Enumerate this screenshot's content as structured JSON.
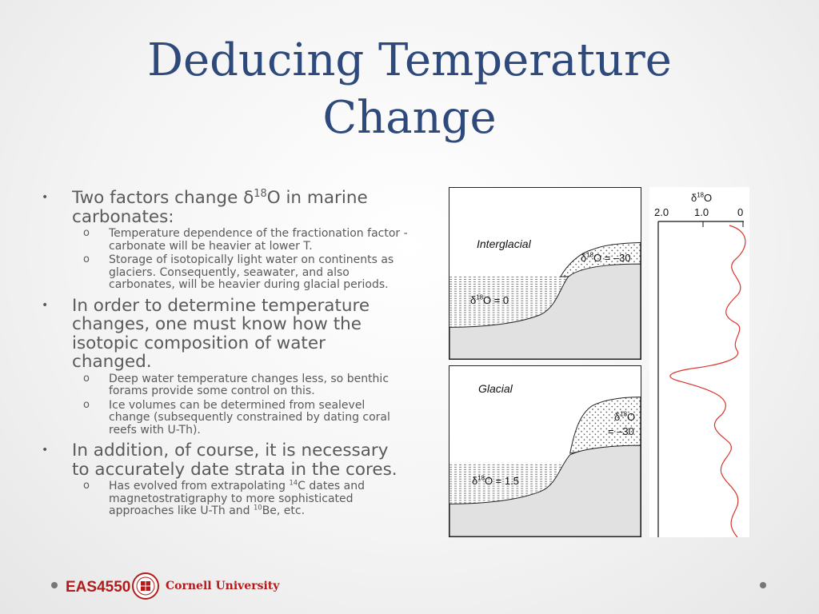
{
  "slide": {
    "title_line1": "Deducing Temperature",
    "title_line2": "Change"
  },
  "bullets": [
    {
      "marker": "•",
      "pre": "Two factors change δ",
      "sup": "18",
      "post": "O in marine carbonates:",
      "sub": [
        {
          "marker": "o",
          "text": "Temperature dependence of the fractionation factor - carbonate will be heavier at lower T."
        },
        {
          "marker": "o",
          "text": "Storage of isotopically light water on continents as glaciers. Consequently, seawater, and also carbonates, will be heavier during glacial periods."
        }
      ]
    },
    {
      "marker": "•",
      "text": "In order to determine temperature changes, one must know how the isotopic composition of water changed.",
      "sub": [
        {
          "marker": "o",
          "text": "Deep water temperature changes less, so benthic forams provide some control on this."
        },
        {
          "marker": "o",
          "text": "Ice volumes can be determined from sealevel change (subsequently constrained by dating coral reefs with U-Th)."
        }
      ]
    },
    {
      "marker": "•",
      "text": "In addition, of course, it is necessary to accurately date strata in the cores.",
      "sub": [
        {
          "marker": "o",
          "pre": "Has evolved from extrapolating ",
          "sup1": "14",
          "mid": "C dates and magnetostratigraphy to more sophisticated approaches like U-Th and ",
          "sup2": "10",
          "post": "Be, etc."
        }
      ]
    }
  ],
  "figure": {
    "interglacial": {
      "label": "Interglacial",
      "ice_pre": "δ",
      "ice_sup": "18",
      "ice_post": "O = –30",
      "sea_pre": "δ",
      "sea_sup": "18",
      "sea_post": "O = 0"
    },
    "glacial": {
      "label": "Glacial",
      "ice_line1_pre": "δ",
      "ice_line1_sup": "18",
      "ice_line1_post": "O",
      "ice_line2": "= –30",
      "sea_pre": "δ",
      "sea_sup": "18",
      "sea_post": "O = 1.5"
    },
    "curve": {
      "axis_title_pre": "δ",
      "axis_title_sup": "18",
      "axis_title_post": "O",
      "ticks": [
        "2.0",
        "1.0",
        "0"
      ],
      "line_color": "#d9342b"
    }
  },
  "footer": {
    "course": "EAS4550",
    "university": "Cornell University",
    "brand_color": "#b31b1b"
  }
}
